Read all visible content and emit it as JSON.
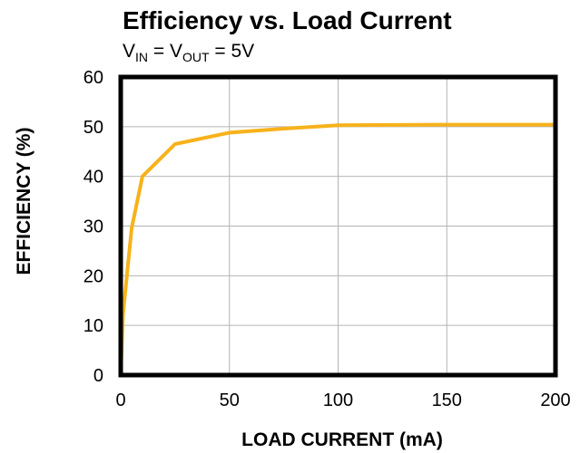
{
  "chart_data": {
    "type": "line",
    "title": "Efficiency vs. Load Current",
    "subtitle": {
      "v1": "V",
      "v1_sub": "IN",
      "eq1": " = V",
      "v2_sub": "OUT",
      "eq2": " = 5V"
    },
    "xlabel": "LOAD CURRENT (mA)",
    "ylabel": "EFFICIENCY (%)",
    "xlim": [
      0,
      200
    ],
    "ylim": [
      0,
      60
    ],
    "x_ticks": [
      0,
      50,
      100,
      150,
      200
    ],
    "y_ticks": [
      0,
      10,
      20,
      30,
      40,
      50,
      60
    ],
    "grid": true,
    "series": [
      {
        "color": "#F7B21B",
        "x": [
          0,
          1,
          5,
          10,
          25,
          50,
          75,
          100,
          150,
          200
        ],
        "y": [
          0,
          12,
          29.5,
          40,
          46.5,
          48.8,
          49.6,
          50.3,
          50.4,
          50.4
        ]
      }
    ]
  }
}
